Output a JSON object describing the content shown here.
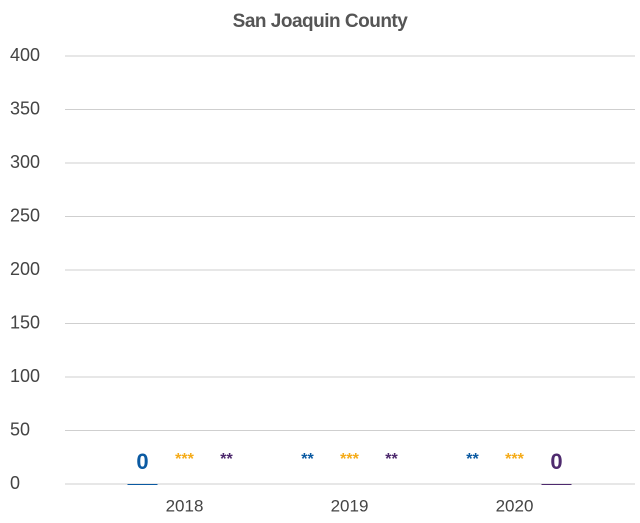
{
  "chart_data": {
    "type": "bar",
    "title": "San Joaquin County",
    "categories": [
      "2018",
      "2019",
      "2020"
    ],
    "series": [
      {
        "color": "#0b5aa2",
        "values": [
          0,
          null,
          null
        ],
        "value_labels": [
          "0",
          "**",
          "**"
        ]
      },
      {
        "color": "#f5ac1b",
        "values": [
          null,
          null,
          null
        ],
        "value_labels": [
          "***",
          "***",
          "***"
        ]
      },
      {
        "color": "#4e2a6e",
        "values": [
          null,
          null,
          0
        ],
        "value_labels": [
          "**",
          "**",
          "0"
        ]
      }
    ],
    "ylim": [
      0,
      400
    ],
    "yticks": [
      0,
      50,
      100,
      150,
      200,
      250,
      300,
      350,
      400
    ],
    "grid": true
  }
}
